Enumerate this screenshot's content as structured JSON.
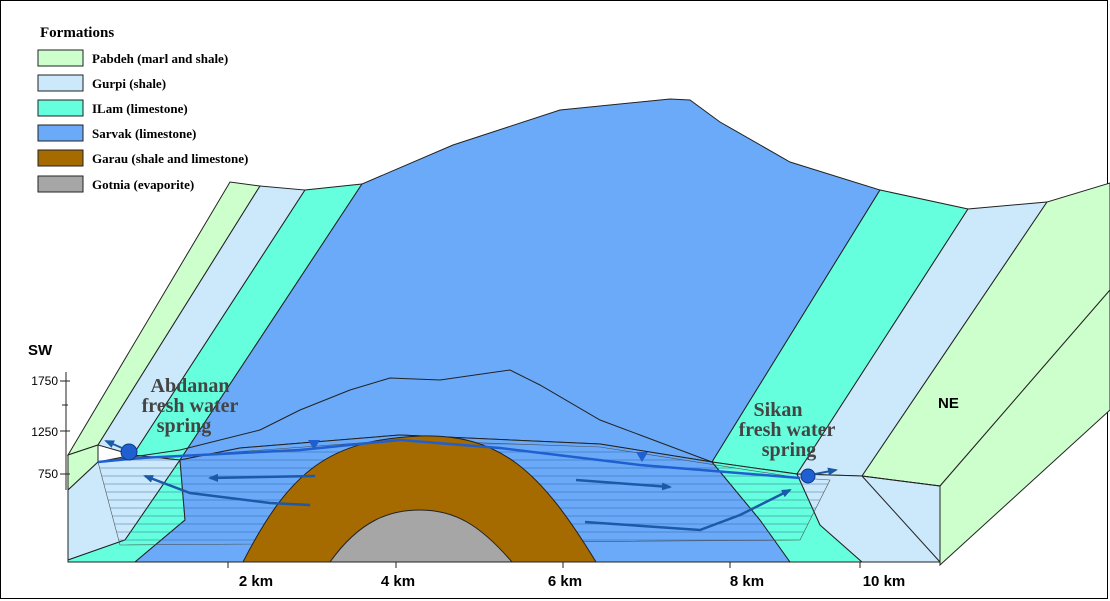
{
  "legend": {
    "title": "Formations",
    "items": [
      {
        "label": "Pabdeh (marl and shale)",
        "color": "#ccffcc"
      },
      {
        "label": "Gurpi (shale)",
        "color": "#cce9fb"
      },
      {
        "label": "ILam (limestone)",
        "color": "#66ffdd"
      },
      {
        "label": "Sarvak (limestone)",
        "color": "#6aaaf8"
      },
      {
        "label": "Garau (shale and limestone)",
        "color": "#a56a00"
      },
      {
        "label": "Gotnia (evaporite)",
        "color": "#a6a6a6"
      }
    ]
  },
  "labels": {
    "sw": "SW",
    "ne": "NE",
    "spring_left": [
      "Abdanan",
      "fresh water",
      "spring"
    ],
    "spring_right": [
      "Sikan",
      "fresh water",
      "spring"
    ]
  },
  "elevation_ticks": [
    "1750",
    "1250",
    "750"
  ],
  "distance_ticks": [
    "2 km",
    "4 km",
    "6 km",
    "8 km",
    "10 km"
  ],
  "colors": {
    "flow": "#1a5aa8",
    "water_table": "#1f5fd0",
    "outline": "#222222"
  }
}
